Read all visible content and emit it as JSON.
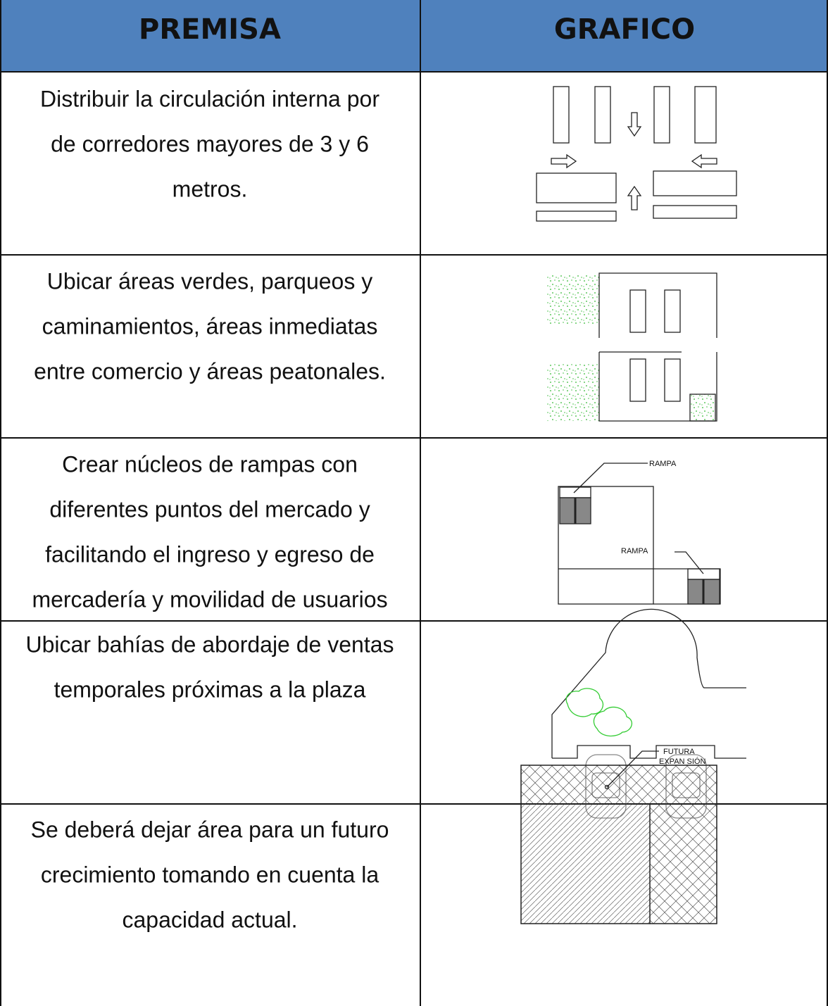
{
  "table": {
    "header": [
      "PREMISA",
      "GRAFICO"
    ],
    "rows": [
      {
        "premisa": [
          "Distribuir la circulación interna por",
          "de corredores mayores de 3 y 6",
          "metros."
        ]
      },
      {
        "premisa": [
          "Ubicar áreas verdes, parqueos y",
          "caminamientos, áreas inmediatas",
          "entre comercio y áreas peatonales."
        ]
      },
      {
        "premisa": [
          "Crear núcleos de rampas con",
          "diferentes puntos del mercado y",
          "facilitando el ingreso y egreso de",
          "mercadería y movilidad de usuarios"
        ],
        "grafico_labels": [
          "RAMPA",
          "RAMPA"
        ]
      },
      {
        "premisa": [
          "Ubicar bahías de abordaje de ventas",
          "temporales próximas a la plaza"
        ]
      },
      {
        "premisa": [
          "Se deberá dejar área para un futuro",
          "crecimiento tomando en cuenta la",
          "capacidad actual."
        ],
        "grafico_labels": [
          "FUTURA",
          "EXPAN SIÓN"
        ]
      }
    ]
  }
}
